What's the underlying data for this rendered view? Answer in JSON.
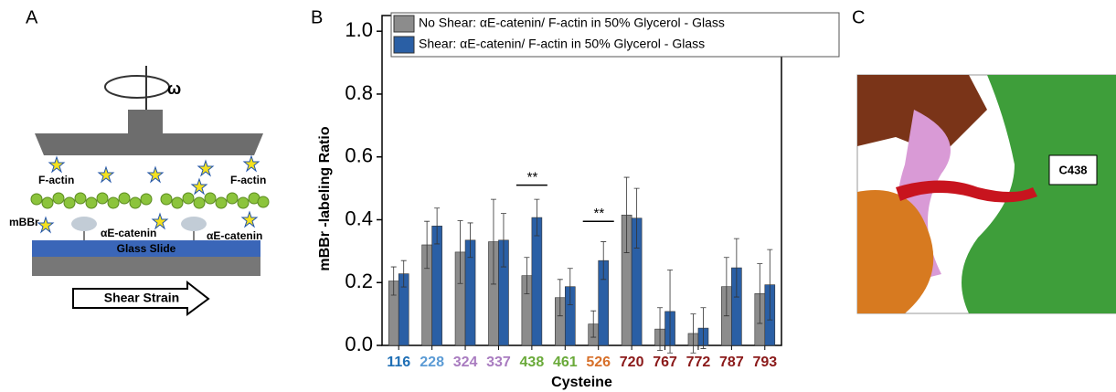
{
  "panel_a": {
    "label": "A",
    "omega": "ω",
    "f_actin_left": "F-actin",
    "f_actin_right": "F-actin",
    "mbbr": "mBBr",
    "catenin_left": "αE-catenin",
    "catenin_right": "αE-catenin",
    "slide": "Glass Slide",
    "strain": "Shear Strain"
  },
  "panel_c": {
    "label": "C",
    "residue": "C438"
  },
  "chart_data": {
    "type": "bar",
    "panel_label": "B",
    "y_label": "mBBr -labeling Ratio",
    "x_label": "Cysteine",
    "categories": [
      "116",
      "228",
      "324",
      "337",
      "438",
      "461",
      "526",
      "720",
      "767",
      "772",
      "787",
      "793"
    ],
    "category_colors": [
      "#1f6fb5",
      "#5b9bd5",
      "#a97cc0",
      "#a97cc0",
      "#6aaa3a",
      "#6aaa3a",
      "#d7702a",
      "#8b1a1a",
      "#8b1a1a",
      "#8b1a1a",
      "#8b1a1a",
      "#8b1a1a"
    ],
    "series": [
      {
        "name": "No Shear: αE-catenin/ F-actin in 50% Glycerol - Glass",
        "color": "#8c8c8c",
        "values": [
          0.205,
          0.32,
          0.297,
          0.33,
          0.222,
          0.152,
          0.068,
          0.415,
          0.052,
          0.038,
          0.187,
          0.165
        ],
        "errors": [
          0.045,
          0.075,
          0.1,
          0.135,
          0.058,
          0.058,
          0.042,
          0.12,
          0.068,
          0.062,
          0.093,
          0.095
        ]
      },
      {
        "name": "Shear: αE-catenin/ F-actin in 50% Glycerol - Glass",
        "color": "#2a5fa5",
        "values": [
          0.228,
          0.38,
          0.335,
          0.335,
          0.407,
          0.187,
          0.27,
          0.405,
          0.108,
          0.055,
          0.247,
          0.193
        ],
        "errors": [
          0.042,
          0.057,
          0.055,
          0.085,
          0.058,
          0.058,
          0.06,
          0.095,
          0.132,
          0.065,
          0.093,
          0.112
        ]
      }
    ],
    "annotations": [
      {
        "text": "**",
        "x": "438",
        "y": 0.51
      },
      {
        "text": "**",
        "x": "526",
        "y": 0.395
      }
    ],
    "ylim": [
      0,
      1.05
    ],
    "yticks": [
      {
        "value": 0,
        "label": "0.0"
      },
      {
        "value": 0.2,
        "label": "0.2"
      },
      {
        "value": 0.4,
        "label": "0.4"
      },
      {
        "value": 0.6,
        "label": "0.6"
      },
      {
        "value": 0.8,
        "label": "0.8"
      },
      {
        "value": 1,
        "label": "1.0"
      }
    ],
    "grid": false,
    "legend": "top-left"
  }
}
